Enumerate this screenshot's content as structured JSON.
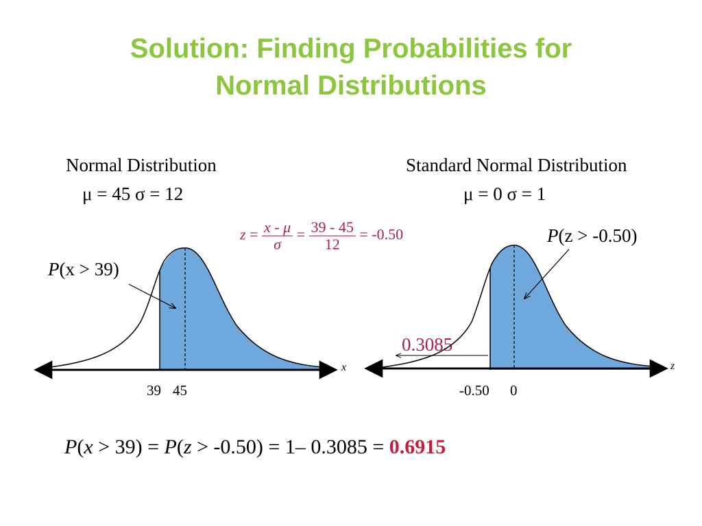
{
  "title": {
    "line1": "Solution:  Finding Probabilities for",
    "line2": "Normal Distributions"
  },
  "left": {
    "heading": "Normal Distribution",
    "params": "μ = 45  σ = 12",
    "prob_p": "P",
    "prob_rest": "(x > 39)",
    "axis_var": "x",
    "tick_39": "39",
    "tick_45": "45"
  },
  "right": {
    "heading": "Standard Normal Distribution",
    "params": "μ = 0  σ = 1",
    "prob_p": "P",
    "prob_rest": "(z > -0.50)",
    "area_left": "0.3085",
    "axis_var": "z",
    "tick_m050": "-0.50",
    "tick_0": "0"
  },
  "formula": {
    "z": "z",
    "eq": "=",
    "num1": "x - μ",
    "den1": "σ",
    "num2": "39 - 45",
    "den2": "12",
    "result": "= -0.50"
  },
  "bottom": {
    "eq_text": "P(x > 39) = P(z > -0.50) = 1– 0.3085 = ",
    "answer": "0.6915"
  },
  "colors": {
    "title": "#8cc63f",
    "fill": "#6fa8dc",
    "formula": "#a8234d",
    "answer": "#c41e3a"
  }
}
